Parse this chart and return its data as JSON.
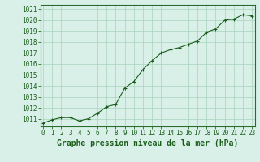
{
  "title": "Graphe pression niveau de la mer (hPa)",
  "x_values": [
    0,
    1,
    2,
    3,
    4,
    5,
    6,
    7,
    8,
    9,
    10,
    11,
    12,
    13,
    14,
    15,
    16,
    17,
    18,
    19,
    20,
    21,
    22,
    23
  ],
  "y_values": [
    1010.6,
    1010.9,
    1011.1,
    1011.1,
    1010.8,
    1011.0,
    1011.5,
    1012.1,
    1012.3,
    1013.8,
    1014.4,
    1015.5,
    1016.3,
    1017.0,
    1017.3,
    1017.5,
    1017.8,
    1018.1,
    1018.9,
    1019.2,
    1020.0,
    1020.1,
    1020.5,
    1020.4
  ],
  "ylim_min": 1010.3,
  "ylim_max": 1021.4,
  "xlim_min": -0.3,
  "xlim_max": 23.3,
  "yticks": [
    1011,
    1012,
    1013,
    1014,
    1015,
    1016,
    1017,
    1018,
    1019,
    1020,
    1021
  ],
  "xticks": [
    0,
    1,
    2,
    3,
    4,
    5,
    6,
    7,
    8,
    9,
    10,
    11,
    12,
    13,
    14,
    15,
    16,
    17,
    18,
    19,
    20,
    21,
    22,
    23
  ],
  "line_color": "#1a5c1a",
  "marker_color": "#1a5c1a",
  "bg_color": "#d8f0e8",
  "grid_color": "#a8d4bc",
  "border_color": "#2a6c2a",
  "text_color": "#1a5c1a",
  "title_fontsize": 7.0,
  "tick_fontsize": 5.5
}
